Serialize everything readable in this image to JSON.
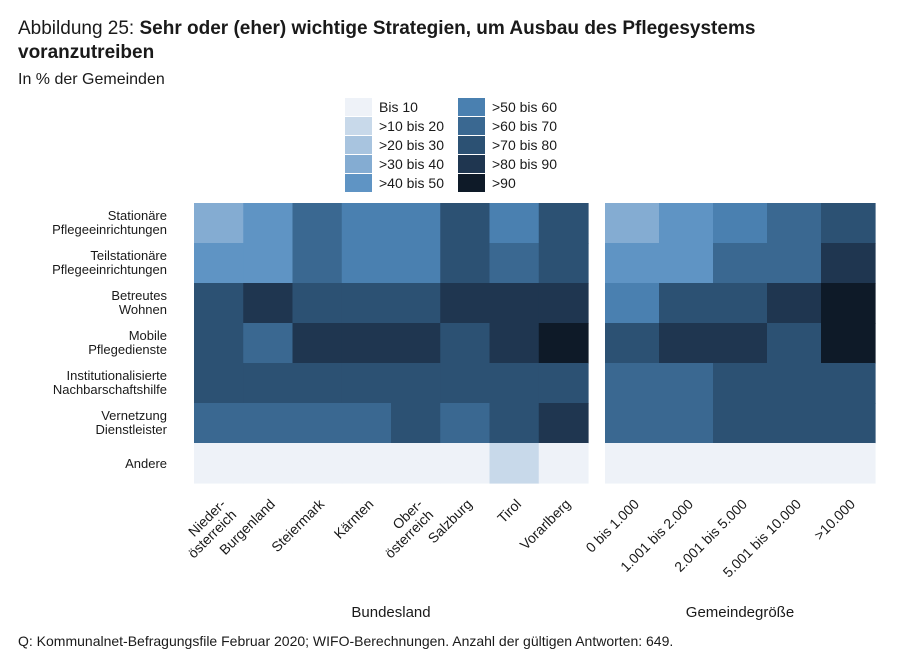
{
  "header": {
    "label": "Abbildung 25:",
    "title": "Sehr oder (eher) wichtige Strategien, um Ausbau des Pflegesystems voranzutreiben",
    "subtitle": "In % der Gemeinden"
  },
  "footer": {
    "source": "Q: Kommunalnet-Befragungsfile Februar 2020; WIFO-Berechnungen. Anzahl der gültigen Antworten: 649."
  },
  "chart_data": {
    "type": "heatmap",
    "value_unit": "% der Gemeinden",
    "legend": {
      "placement": "top-center",
      "bins": [
        {
          "label": "Bis 10",
          "color": "#eef2f8"
        },
        {
          "label": ">10 bis 20",
          "color": "#c8d9ea"
        },
        {
          "label": ">20 bis 30",
          "color": "#a8c4df"
        },
        {
          "label": ">30 bis 40",
          "color": "#84acd2"
        },
        {
          "label": ">40 bis 50",
          "color": "#5f94c4"
        },
        {
          "label": ">50 bis 60",
          "color": "#4a80b0"
        },
        {
          "label": ">60 bis 70",
          "color": "#3a6891"
        },
        {
          "label": ">70 bis 80",
          "color": "#2c5173"
        },
        {
          "label": ">80 bis 90",
          "color": "#1f3650"
        },
        {
          "label": ">90",
          "color": "#0e1a28"
        }
      ]
    },
    "rows": [
      [
        "Stationäre",
        "Pflegeeinrichtungen"
      ],
      [
        "Teilstationäre",
        "Pflegeeinrichtungen"
      ],
      [
        "Betreutes",
        "Wohnen"
      ],
      [
        "Mobile",
        "Pflegedienste"
      ],
      [
        "Institutionalisierte",
        "Nachbarschaftshilfe"
      ],
      [
        "Vernetzung",
        "Dienstleister"
      ],
      [
        "Andere"
      ]
    ],
    "panels": [
      {
        "name": "Bundesland",
        "columns": [
          [
            "Nieder-",
            "österreich"
          ],
          [
            "Burgenland"
          ],
          [
            "Steiermark"
          ],
          [
            "Kärnten"
          ],
          [
            "Ober-",
            "österreich"
          ],
          [
            "Salzburg"
          ],
          [
            "Tirol"
          ],
          [
            "Vorarlberg"
          ]
        ],
        "values": [
          [
            35,
            45,
            65,
            55,
            55,
            75,
            55,
            75
          ],
          [
            45,
            45,
            65,
            55,
            55,
            75,
            65,
            75
          ],
          [
            75,
            85,
            75,
            75,
            75,
            85,
            85,
            85
          ],
          [
            75,
            65,
            85,
            85,
            85,
            75,
            85,
            95
          ],
          [
            75,
            75,
            75,
            75,
            75,
            75,
            75,
            75
          ],
          [
            65,
            65,
            65,
            65,
            75,
            65,
            75,
            85
          ],
          [
            5,
            5,
            5,
            5,
            5,
            5,
            15,
            5
          ]
        ]
      },
      {
        "name": "Gemeindegröße",
        "columns": [
          [
            "0 bis 1.000"
          ],
          [
            "1.001 bis 2.000"
          ],
          [
            "2.001 bis 5.000"
          ],
          [
            "5.001 bis 10.000"
          ],
          [
            ">10.000"
          ]
        ],
        "values": [
          [
            35,
            45,
            55,
            65,
            75
          ],
          [
            45,
            45,
            65,
            65,
            85
          ],
          [
            55,
            75,
            75,
            85,
            95
          ],
          [
            75,
            85,
            85,
            75,
            95
          ],
          [
            65,
            65,
            75,
            75,
            75
          ],
          [
            65,
            65,
            75,
            75,
            75
          ],
          [
            5,
            5,
            5,
            5,
            5
          ]
        ]
      }
    ]
  }
}
